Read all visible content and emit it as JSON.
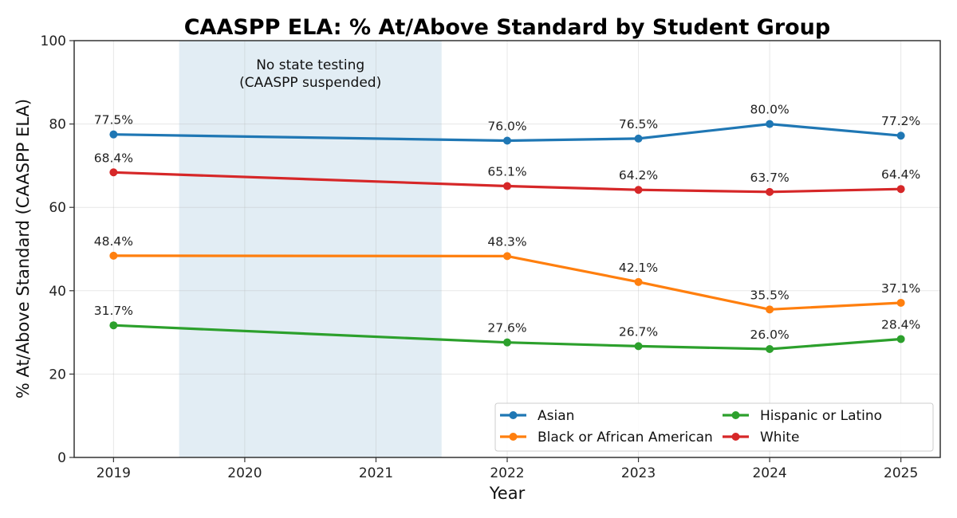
{
  "chart_data": {
    "type": "line",
    "title": "CAASPP ELA: % At/Above Standard by Student Group",
    "xlabel": "Year",
    "ylabel": "% At/Above Standard (CAASPP ELA)",
    "xlim": [
      2018.7,
      2025.3
    ],
    "ylim": [
      0,
      100
    ],
    "xticks": [
      2019,
      2020,
      2021,
      2022,
      2023,
      2024,
      2025
    ],
    "xtick_labels": [
      "2019",
      "2020",
      "2021",
      "2022",
      "2023",
      "2024",
      "2025"
    ],
    "yticks": [
      0,
      20,
      40,
      60,
      80,
      100
    ],
    "ytick_labels": [
      "0",
      "20",
      "40",
      "60",
      "80",
      "100"
    ],
    "grid": true,
    "x": [
      2019,
      2022,
      2023,
      2024,
      2025
    ],
    "series": [
      {
        "name": "Asian",
        "color": "#1f77b4",
        "values": [
          77.5,
          76.0,
          76.5,
          80.0,
          77.2
        ],
        "labels": [
          "77.5%",
          "76.0%",
          "76.5%",
          "80.0%",
          "77.2%"
        ]
      },
      {
        "name": "Black or African American",
        "color": "#ff7f0e",
        "values": [
          48.4,
          48.3,
          42.1,
          35.5,
          37.1
        ],
        "labels": [
          "48.4%",
          "48.3%",
          "42.1%",
          "35.5%",
          "37.1%"
        ]
      },
      {
        "name": "Hispanic or Latino",
        "color": "#2ca02c",
        "values": [
          31.7,
          27.6,
          26.7,
          26.0,
          28.4
        ],
        "labels": [
          "31.7%",
          "27.6%",
          "26.7%",
          "26.0%",
          "28.4%"
        ]
      },
      {
        "name": "White",
        "color": "#d62728",
        "values": [
          68.4,
          65.1,
          64.2,
          63.7,
          64.4
        ],
        "labels": [
          "68.4%",
          "65.1%",
          "64.2%",
          "63.7%",
          "64.4%"
        ]
      }
    ],
    "shaded_region": {
      "x_range": [
        2019.5,
        2021.5
      ],
      "color": "#dbe8f1",
      "annotation_lines": [
        "No state testing",
        "(CAASPP suspended)"
      ]
    },
    "legend": {
      "placement": "lower-right",
      "columns": 2,
      "order": [
        "Asian",
        "Black or African American",
        "Hispanic or Latino",
        "White"
      ]
    }
  }
}
